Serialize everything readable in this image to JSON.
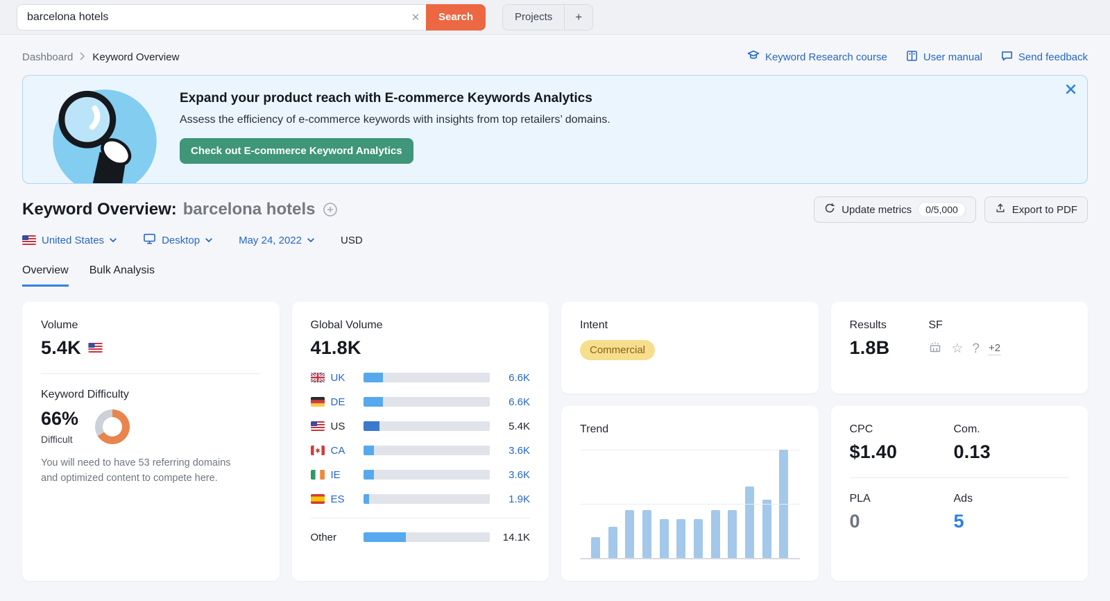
{
  "topbar": {
    "search_value": "barcelona hotels",
    "search_button": "Search",
    "clear_glyph": "✕",
    "projects_label": "Projects",
    "projects_add": "+"
  },
  "breadcrumb": [
    "Dashboard",
    "Keyword Overview"
  ],
  "help_links": [
    {
      "label": "Keyword Research course"
    },
    {
      "label": "User manual"
    },
    {
      "label": "Send feedback"
    }
  ],
  "banner": {
    "title": "Expand your product reach with E-commerce Keywords Analytics",
    "subtitle": "Assess the efficiency of e-commerce keywords with insights from top retailers’ domains.",
    "cta": "Check out E-commerce Keyword Analytics"
  },
  "header": {
    "title": "Keyword Overview:",
    "keyword": "barcelona hotels",
    "update_metrics": "Update metrics",
    "update_counter": "0/5,000",
    "export_pdf": "Export to PDF"
  },
  "filters": {
    "country": "United States",
    "device": "Desktop",
    "date": "May 24, 2022",
    "currency": "USD"
  },
  "tabs": [
    {
      "label": "Overview"
    },
    {
      "label": "Bulk Analysis"
    }
  ],
  "cards": {
    "volume": {
      "label": "Volume",
      "value": "5.4K"
    },
    "difficulty": {
      "label": "Keyword Difficulty",
      "value": "66%",
      "qualifier": "Difficult",
      "note": "You will need to have 53 referring domains and optimized content to compete here."
    },
    "global_volume": {
      "label": "Global Volume",
      "value": "41.8K"
    },
    "intent": {
      "label": "Intent",
      "value": "Commercial"
    },
    "results": {
      "label": "Results",
      "value": "1.8B"
    },
    "sf": {
      "label": "SF",
      "star_glyph": "☆",
      "question_glyph": "?",
      "more": "+2"
    },
    "trend": {
      "label": "Trend"
    },
    "cpc": {
      "label": "CPC",
      "value": "$1.40"
    },
    "com": {
      "label": "Com.",
      "value": "0.13"
    },
    "pla": {
      "label": "PLA",
      "value": "0"
    },
    "ads": {
      "label": "Ads",
      "value": "5"
    }
  },
  "colors": {
    "accent_blue": "#2567C6",
    "search_orange": "#EB6842",
    "cta_green": "#3F9678",
    "donut_orange": "#E8854E",
    "donut_rest": "#CBD1D8",
    "bar_fill": "#57A9EE",
    "bar_fill_current": "#3B79CE",
    "trend_bar": "#A3C8EA",
    "intent_bg": "#F6DE8D",
    "intent_text": "#8A6116"
  },
  "chart_data": [
    {
      "type": "bar",
      "title": "Global Volume",
      "total": 41800,
      "total_label": "41.8K",
      "categories": [
        "UK",
        "DE",
        "US",
        "CA",
        "IE",
        "ES",
        "Other"
      ],
      "values": [
        6600,
        6600,
        5400,
        3600,
        3600,
        1900,
        14100
      ],
      "value_labels": [
        "6.6K",
        "6.6K",
        "5.4K",
        "3.6K",
        "3.6K",
        "1.9K",
        "14.1K"
      ],
      "current_country": "US",
      "link_rows": [
        true,
        true,
        false,
        true,
        true,
        true,
        false
      ],
      "legend_position": "none",
      "grid": false
    },
    {
      "type": "pie",
      "subtype": "donut",
      "title": "Keyword Difficulty",
      "value_percent": 66,
      "label": "66%",
      "qualifier": "Difficult"
    },
    {
      "type": "bar",
      "title": "Trend",
      "x": [
        1,
        2,
        3,
        4,
        5,
        6,
        7,
        8,
        9,
        10,
        11,
        12
      ],
      "values_relative": [
        0.19,
        0.29,
        0.44,
        0.44,
        0.36,
        0.36,
        0.36,
        0.44,
        0.44,
        0.66,
        0.54,
        1.0
      ],
      "ylim": [
        0,
        1
      ],
      "gridlines": 3,
      "xlabel": "",
      "ylabel": ""
    }
  ]
}
